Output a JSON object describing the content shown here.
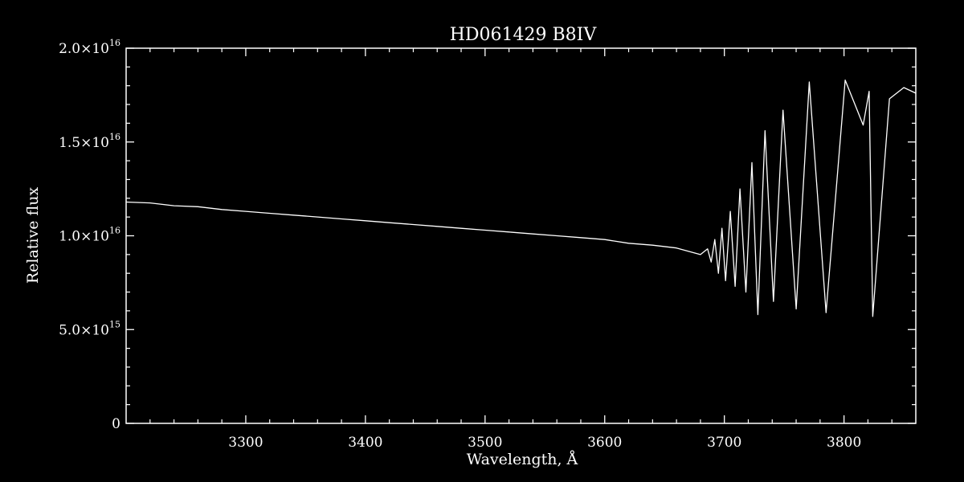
{
  "chart_data": {
    "type": "line",
    "title": "HD061429   B8IV",
    "xlabel": "Wavelength, Å",
    "ylabel": "Relative flux",
    "xlim": [
      3200,
      3860
    ],
    "ylim": [
      0,
      2e+16
    ],
    "x_ticks": [
      {
        "value": 3300,
        "label": "3300"
      },
      {
        "value": 3400,
        "label": "3400"
      },
      {
        "value": 3500,
        "label": "3500"
      },
      {
        "value": 3600,
        "label": "3600"
      },
      {
        "value": 3700,
        "label": "3700"
      },
      {
        "value": 3800,
        "label": "3800"
      }
    ],
    "y_ticks": [
      {
        "value": 0,
        "mantissa": "0",
        "exponent": ""
      },
      {
        "value": 5000000000000000.0,
        "mantissa": "5.0×10",
        "exponent": "15"
      },
      {
        "value": 1e+16,
        "mantissa": "1.0×10",
        "exponent": "16"
      },
      {
        "value": 1.5e+16,
        "mantissa": "1.5×10",
        "exponent": "16"
      },
      {
        "value": 2e+16,
        "mantissa": "2.0×10",
        "exponent": "16"
      }
    ],
    "grid": false,
    "colors": {
      "background": "#000000",
      "foreground": "#ffffff"
    },
    "series": [
      {
        "x": [
          3200,
          3220,
          3240,
          3260,
          3280,
          3300,
          3320,
          3340,
          3360,
          3380,
          3400,
          3420,
          3440,
          3460,
          3480,
          3500,
          3520,
          3540,
          3560,
          3580,
          3600,
          3620,
          3640,
          3660,
          3680,
          3686,
          3689,
          3692,
          3695,
          3698,
          3701,
          3705,
          3709,
          3713,
          3718,
          3723,
          3728,
          3734,
          3741,
          3749,
          3760,
          3771,
          3785,
          3801,
          3816,
          3821,
          3824,
          3838,
          3850,
          3860
        ],
        "y": [
          1.18e+16,
          1.175e+16,
          1.16e+16,
          1.155e+16,
          1.14e+16,
          1.13e+16,
          1.12e+16,
          1.11e+16,
          1.1e+16,
          1.09e+16,
          1.08e+16,
          1.07e+16,
          1.06e+16,
          1.05e+16,
          1.04e+16,
          1.03e+16,
          1.02e+16,
          1.01e+16,
          1e+16,
          9900000000000000.0,
          9800000000000000.0,
          9600000000000000.0,
          9500000000000000.0,
          9350000000000000.0,
          9000000000000000.0,
          9300000000000000.0,
          8600000000000000.0,
          9800000000000000.0,
          8000000000000000.0,
          1.04e+16,
          7600000000000000.0,
          1.13e+16,
          7300000000000000.0,
          1.25e+16,
          7000000000000000.0,
          1.39e+16,
          5800000000000000.0,
          1.56e+16,
          6500000000000000.0,
          1.67e+16,
          6100000000000000.0,
          1.82e+16,
          5900000000000000.0,
          1.83e+16,
          1.59e+16,
          1.77e+16,
          5700000000000000.0,
          1.73e+16,
          1.79e+16,
          1.76e+16
        ]
      }
    ]
  }
}
